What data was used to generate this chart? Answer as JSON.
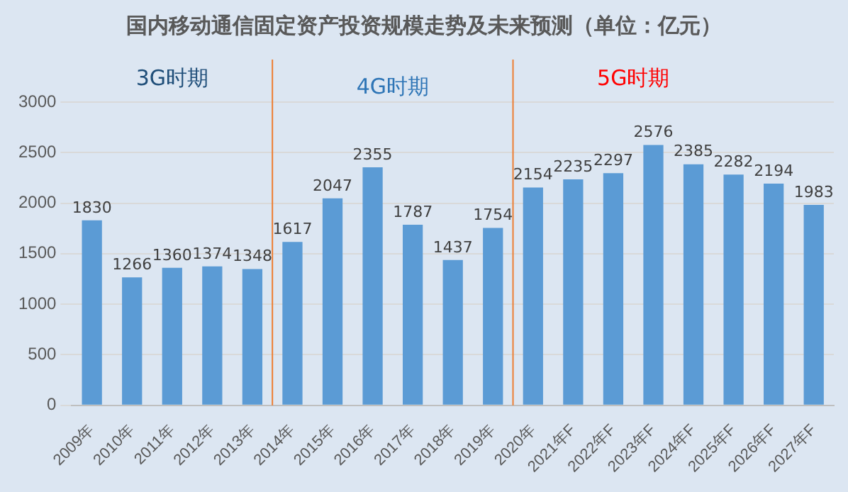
{
  "chart_data": {
    "type": "bar",
    "title": "国内移动通信固定资产投资规模走势及未来预测（单位：亿元）",
    "categories": [
      "2009年",
      "2010年",
      "2011年",
      "2012年",
      "2013年",
      "2014年",
      "2015年",
      "2016年",
      "2017年",
      "2018年",
      "2019年",
      "2020年",
      "2021年F",
      "2022年F",
      "2023年F",
      "2024年F",
      "2025年F",
      "2026年F",
      "2027年F"
    ],
    "values": [
      1830,
      1266,
      1360,
      1374,
      1348,
      1617,
      2047,
      2355,
      1787,
      1437,
      1754,
      2154,
      2235,
      2297,
      2576,
      2385,
      2282,
      2194,
      1983
    ],
    "color": "#5b9bd5",
    "ylim": [
      0,
      3000
    ],
    "yticks": [
      0,
      500,
      1000,
      1500,
      2000,
      2500,
      3000
    ],
    "grid": "y",
    "data_labels": true,
    "annotations": [
      "3G时期",
      "4G时期",
      "5G时期"
    ],
    "ref_lines": [
      {
        "axis": "x",
        "value": "2014年",
        "color": "#ed7d31"
      },
      {
        "axis": "x",
        "value": "2020年",
        "color": "#ed7d31"
      }
    ]
  }
}
